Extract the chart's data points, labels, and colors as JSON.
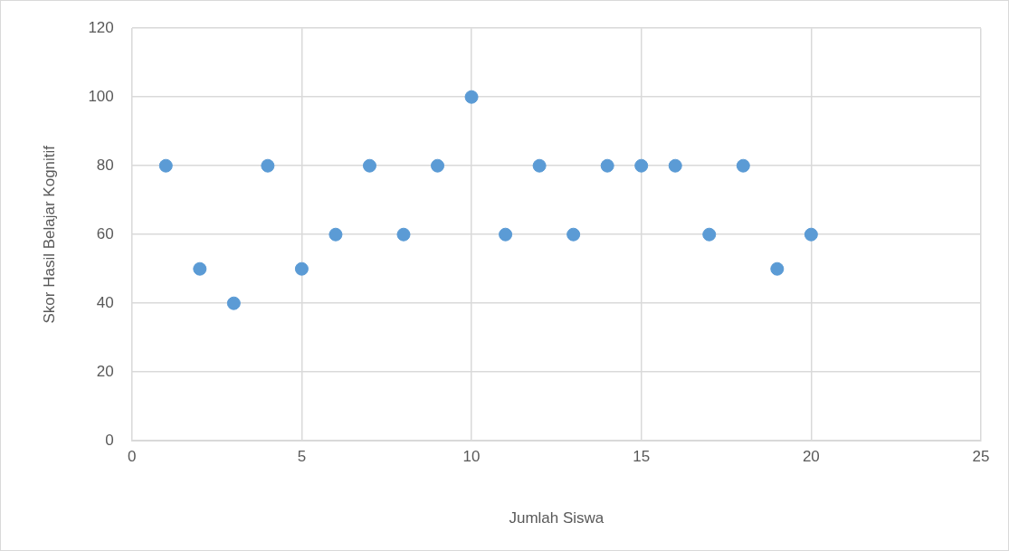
{
  "chart_data": {
    "type": "scatter",
    "xlabel": "Jumlah Siswa",
    "ylabel": "Skor Hasil Belajar Kognitif",
    "x": [
      1,
      2,
      3,
      4,
      5,
      6,
      7,
      8,
      9,
      10,
      11,
      12,
      13,
      14,
      15,
      16,
      17,
      18,
      19,
      20
    ],
    "series": [
      {
        "color": "#5b9bd5",
        "values": [
          80,
          50,
          40,
          80,
          50,
          60,
          80,
          60,
          80,
          100,
          60,
          80,
          60,
          80,
          80,
          80,
          60,
          80,
          50,
          60
        ]
      }
    ],
    "xlim": [
      0,
      25
    ],
    "xticks": [
      0,
      5,
      10,
      15,
      20,
      25
    ],
    "ylim": [
      0,
      120
    ],
    "yticks": [
      0,
      20,
      40,
      60,
      80,
      100,
      120
    ],
    "grid": true,
    "legend": false,
    "marker": "circle"
  }
}
